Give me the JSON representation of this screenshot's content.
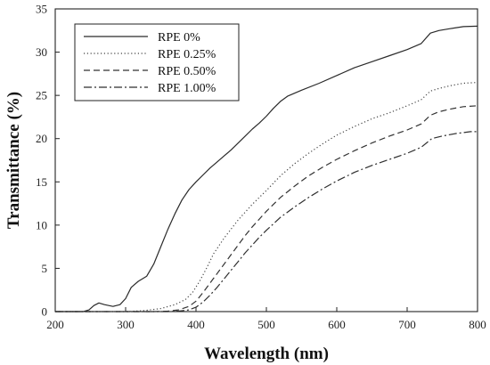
{
  "chart_data": {
    "type": "line",
    "xlabel": "Wavelength (nm)",
    "ylabel": "Transmittance (%)",
    "xlim": [
      200,
      800
    ],
    "ylim": [
      0,
      35
    ],
    "x_ticks": [
      200,
      300,
      400,
      500,
      600,
      700,
      800
    ],
    "y_ticks": [
      0,
      5,
      10,
      15,
      20,
      25,
      30,
      35
    ],
    "grid": false,
    "legend_position": "top-left",
    "series": [
      {
        "name": "RPE 0%",
        "color": "#2a2a2a",
        "dash": "solid",
        "points": [
          [
            200,
            0
          ],
          [
            240,
            0
          ],
          [
            248,
            0.2
          ],
          [
            255,
            0.7
          ],
          [
            262,
            1.0
          ],
          [
            270,
            0.8
          ],
          [
            282,
            0.6
          ],
          [
            292,
            0.8
          ],
          [
            300,
            1.5
          ],
          [
            308,
            2.8
          ],
          [
            318,
            3.5
          ],
          [
            330,
            4.1
          ],
          [
            340,
            5.5
          ],
          [
            350,
            7.5
          ],
          [
            360,
            9.5
          ],
          [
            370,
            11.3
          ],
          [
            380,
            12.9
          ],
          [
            390,
            14.1
          ],
          [
            400,
            15.0
          ],
          [
            410,
            15.8
          ],
          [
            420,
            16.6
          ],
          [
            430,
            17.3
          ],
          [
            440,
            18.0
          ],
          [
            450,
            18.7
          ],
          [
            460,
            19.5
          ],
          [
            470,
            20.3
          ],
          [
            480,
            21.1
          ],
          [
            490,
            21.8
          ],
          [
            500,
            22.6
          ],
          [
            510,
            23.5
          ],
          [
            520,
            24.3
          ],
          [
            530,
            24.9
          ],
          [
            550,
            25.6
          ],
          [
            575,
            26.4
          ],
          [
            600,
            27.3
          ],
          [
            625,
            28.2
          ],
          [
            650,
            28.9
          ],
          [
            675,
            29.6
          ],
          [
            700,
            30.3
          ],
          [
            720,
            31.0
          ],
          [
            733,
            32.2
          ],
          [
            745,
            32.5
          ],
          [
            760,
            32.7
          ],
          [
            780,
            32.95
          ],
          [
            800,
            33.0
          ]
        ]
      },
      {
        "name": "RPE 0.25%",
        "color": "#444444",
        "dash": "dotted",
        "points": [
          [
            200,
            0
          ],
          [
            300,
            0
          ],
          [
            325,
            0.1
          ],
          [
            350,
            0.35
          ],
          [
            370,
            0.8
          ],
          [
            385,
            1.4
          ],
          [
            395,
            2.2
          ],
          [
            405,
            3.5
          ],
          [
            415,
            5.0
          ],
          [
            425,
            6.7
          ],
          [
            440,
            8.5
          ],
          [
            460,
            10.6
          ],
          [
            480,
            12.4
          ],
          [
            500,
            14.0
          ],
          [
            520,
            15.7
          ],
          [
            540,
            17.1
          ],
          [
            560,
            18.3
          ],
          [
            580,
            19.4
          ],
          [
            600,
            20.4
          ],
          [
            625,
            21.4
          ],
          [
            650,
            22.3
          ],
          [
            675,
            23.0
          ],
          [
            700,
            23.8
          ],
          [
            720,
            24.5
          ],
          [
            733,
            25.5
          ],
          [
            745,
            25.8
          ],
          [
            760,
            26.1
          ],
          [
            780,
            26.4
          ],
          [
            800,
            26.5
          ]
        ]
      },
      {
        "name": "RPE 0.50%",
        "color": "#333333",
        "dash": "dashed",
        "points": [
          [
            200,
            0
          ],
          [
            340,
            0
          ],
          [
            360,
            0.05
          ],
          [
            375,
            0.2
          ],
          [
            390,
            0.6
          ],
          [
            400,
            1.2
          ],
          [
            410,
            2.2
          ],
          [
            420,
            3.3
          ],
          [
            430,
            4.4
          ],
          [
            440,
            5.5
          ],
          [
            450,
            6.6
          ],
          [
            460,
            7.7
          ],
          [
            470,
            8.8
          ],
          [
            480,
            9.8
          ],
          [
            490,
            10.7
          ],
          [
            500,
            11.6
          ],
          [
            520,
            13.2
          ],
          [
            540,
            14.5
          ],
          [
            560,
            15.7
          ],
          [
            580,
            16.7
          ],
          [
            600,
            17.6
          ],
          [
            625,
            18.6
          ],
          [
            650,
            19.5
          ],
          [
            675,
            20.3
          ],
          [
            700,
            21.0
          ],
          [
            720,
            21.7
          ],
          [
            733,
            22.7
          ],
          [
            745,
            23.1
          ],
          [
            760,
            23.4
          ],
          [
            780,
            23.7
          ],
          [
            800,
            23.8
          ]
        ]
      },
      {
        "name": "RPE 1.00%",
        "color": "#2f2f2f",
        "dash": "dashdot",
        "points": [
          [
            200,
            0
          ],
          [
            360,
            0
          ],
          [
            375,
            0.05
          ],
          [
            390,
            0.2
          ],
          [
            400,
            0.5
          ],
          [
            410,
            1.1
          ],
          [
            420,
            1.9
          ],
          [
            430,
            2.8
          ],
          [
            440,
            3.8
          ],
          [
            450,
            4.8
          ],
          [
            460,
            5.8
          ],
          [
            470,
            6.8
          ],
          [
            480,
            7.7
          ],
          [
            490,
            8.6
          ],
          [
            500,
            9.4
          ],
          [
            520,
            10.9
          ],
          [
            540,
            12.1
          ],
          [
            560,
            13.2
          ],
          [
            580,
            14.2
          ],
          [
            600,
            15.1
          ],
          [
            625,
            16.1
          ],
          [
            650,
            16.9
          ],
          [
            675,
            17.6
          ],
          [
            700,
            18.3
          ],
          [
            720,
            19.0
          ],
          [
            735,
            20.0
          ],
          [
            750,
            20.3
          ],
          [
            770,
            20.6
          ],
          [
            790,
            20.8
          ],
          [
            800,
            20.8
          ]
        ]
      }
    ]
  }
}
